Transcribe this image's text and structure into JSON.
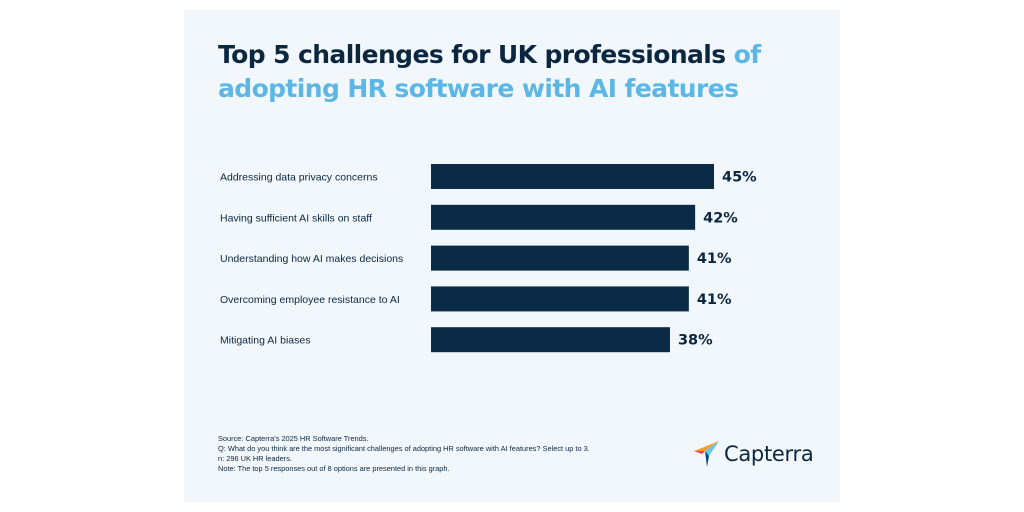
{
  "title": {
    "part1": "Top 5 challenges for UK professionals",
    "part2": "of adopting HR software with AI features"
  },
  "chart_data": {
    "type": "bar",
    "orientation": "horizontal",
    "categories": [
      "Addressing data privacy concerns",
      "Having sufficient AI skills on staff",
      "Understanding how AI makes decisions",
      "Overcoming employee resistance to AI",
      "Mitigating AI biases"
    ],
    "values": [
      45,
      42,
      41,
      41,
      38
    ],
    "value_labels": [
      "45%",
      "42%",
      "41%",
      "41%",
      "38%"
    ],
    "xlim": [
      0,
      100
    ],
    "grid": false,
    "legend": "none",
    "bar_color": "#0b2a45"
  },
  "footnotes": {
    "source": "Source: Capterra's 2025 HR Software Trends.",
    "question": "Q: What do you think are the most significant challenges of adopting HR software with AI features? Select up to 3.",
    "n": "n: 296 UK HR leaders.",
    "note": "Note: The top 5 responses out of 8 options are presented in this graph."
  },
  "logo": {
    "text": "Capterra",
    "icon": "capterra-arrow-icon",
    "colors": [
      "#ff9d28",
      "#68c5ed",
      "#044d80",
      "#e54747"
    ]
  }
}
